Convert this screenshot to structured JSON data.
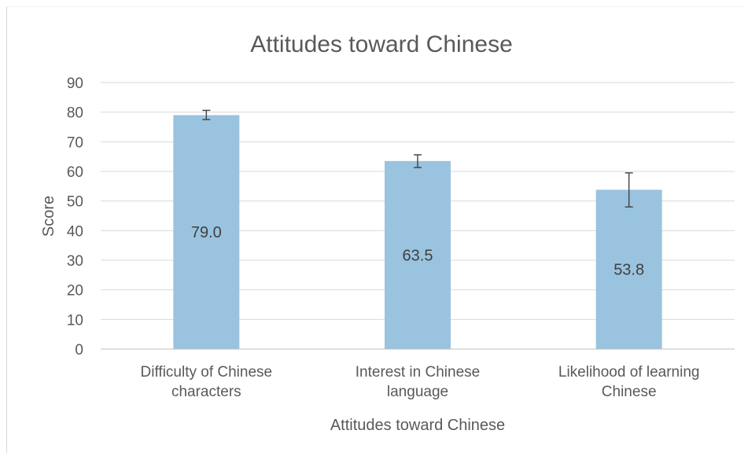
{
  "chart_data": {
    "type": "bar",
    "title": "Attitudes toward Chinese",
    "xlabel": "Attitudes toward Chinese",
    "ylabel": "Score",
    "ylim": [
      0,
      90
    ],
    "yticks": [
      0,
      10,
      20,
      30,
      40,
      50,
      60,
      70,
      80,
      90
    ],
    "grid": true,
    "legend": "none",
    "categories": [
      [
        "Difficulty of Chinese",
        "characters"
      ],
      [
        "Interest in Chinese",
        "language"
      ],
      [
        "Likelihood of learning",
        "Chinese"
      ]
    ],
    "values": [
      79.0,
      63.5,
      53.8
    ],
    "data_labels": [
      "79.0",
      "63.5",
      "53.8"
    ],
    "error_bars": [
      [
        77.5,
        80.6
      ],
      [
        61.3,
        65.6
      ],
      [
        48.0,
        59.5
      ]
    ],
    "colors": {
      "bar": "#9ac3df",
      "gridline": "#d9d9d9",
      "axis": "#bfbfbf",
      "text": "#595959",
      "data_label": "#404040",
      "error_bar": "#404040"
    }
  }
}
